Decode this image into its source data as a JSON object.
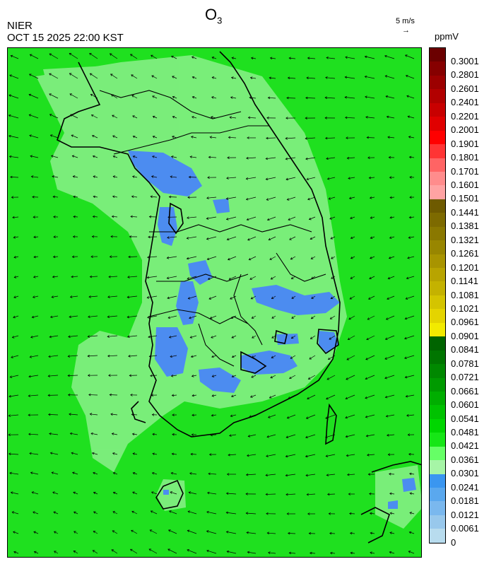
{
  "header": {
    "title_main": "O",
    "title_sub": "3",
    "agency": "NIER",
    "datetime": "OCT 15 2025 22:00 KST",
    "wind_scale_label": "5 m/s",
    "wind_scale_arrow": "→",
    "unit": "ppmV"
  },
  "colorbar": {
    "labels": [
      "0.3001",
      "0.2801",
      "0.2601",
      "0.2401",
      "0.2201",
      "0.2001",
      "0.1901",
      "0.1801",
      "0.1701",
      "0.1601",
      "0.1501",
      "0.1441",
      "0.1381",
      "0.1321",
      "0.1261",
      "0.1201",
      "0.1141",
      "0.1081",
      "0.1021",
      "0.0961",
      "0.0901",
      "0.0841",
      "0.0781",
      "0.0721",
      "0.0661",
      "0.0601",
      "0.0541",
      "0.0481",
      "0.0421",
      "0.0361",
      "0.0301",
      "0.0241",
      "0.0181",
      "0.0121",
      "0.0061",
      "0"
    ],
    "colors": [
      "#6b0000",
      "#860000",
      "#9c0000",
      "#b20000",
      "#c80000",
      "#e00000",
      "#ff0000",
      "#ff3434",
      "#ff6464",
      "#ff8c8c",
      "#ffa3a3",
      "#6e5a00",
      "#7d6a00",
      "#8a7800",
      "#988600",
      "#a89400",
      "#b8a400",
      "#c4b200",
      "#d4c400",
      "#e4d400",
      "#f2ea00",
      "#006400",
      "#007500",
      "#008800",
      "#009a00",
      "#00ae00",
      "#00c200",
      "#00d600",
      "#16e616",
      "#66ff66",
      "#a6f5a6",
      "#3a96f0",
      "#5aa8ee",
      "#7ab8ee",
      "#98c8ec",
      "#b8dcee"
    ]
  },
  "map": {
    "background_color": "#1fe01f",
    "low_color": "#4c8cf0",
    "mid_color": "#8af08a"
  }
}
